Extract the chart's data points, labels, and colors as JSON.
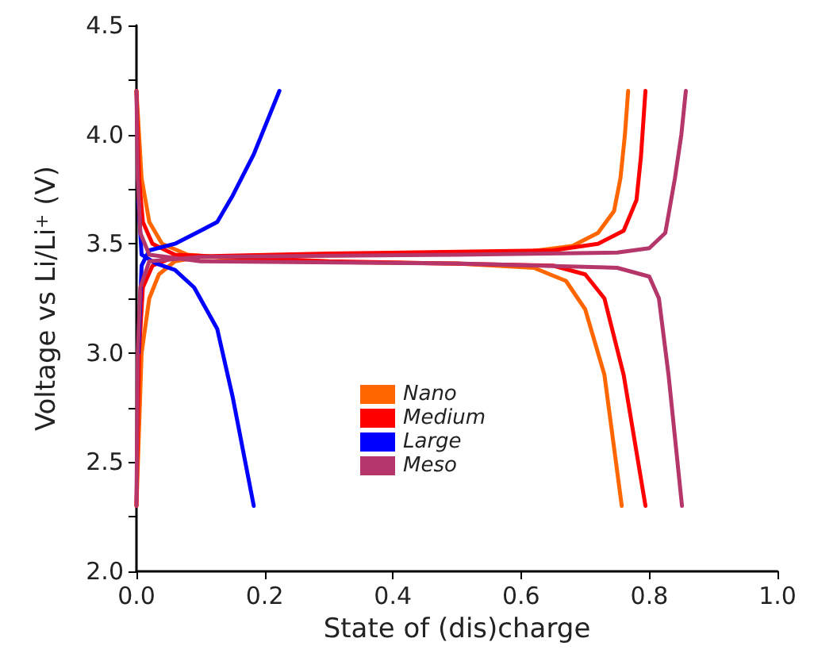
{
  "chart_data": {
    "type": "line",
    "xlabel": "State of (dis)charge",
    "ylabel": "Voltage vs Li/Li$^{+}$ (V)",
    "xlim": [
      0,
      1
    ],
    "ylim": [
      2,
      4.5
    ],
    "xticks": [
      {
        "value": 0,
        "label": "0.0"
      },
      0.2,
      0.4,
      0.6,
      0.8,
      {
        "value": 1,
        "label": "1.0"
      }
    ],
    "yticks": [
      {
        "value": 2,
        "label": "2.0"
      },
      {
        "value": 2.25,
        "label": null
      },
      2.5,
      {
        "value": 2.75,
        "label": null
      },
      {
        "value": 3,
        "label": "3.0"
      },
      {
        "value": 3.25,
        "label": null
      },
      3.5,
      {
        "value": 3.75,
        "label": null
      },
      {
        "value": 4,
        "label": "4.0"
      },
      {
        "value": 4.25,
        "label": null
      },
      4.5
    ],
    "grid": false,
    "legend": "bottom",
    "marker": "none",
    "line_style": "solid",
    "series": [
      {
        "name": "Nano",
        "color": "#ff6600",
        "x": [
          0,
          0.008,
          0.02,
          0.035,
          0.06,
          0.1,
          0.3,
          0.6,
          0.68,
          0.72,
          0.745,
          0.755,
          0.762,
          0.767,
          null,
          0,
          0.008,
          0.02,
          0.04,
          0.08,
          0.2,
          0.5,
          0.62,
          0.67,
          0.7,
          0.73,
          0.757
        ],
        "values": [
          2.3,
          3.0,
          3.25,
          3.36,
          3.42,
          3.44,
          3.45,
          3.46,
          3.49,
          3.55,
          3.65,
          3.8,
          4.0,
          4.2,
          null,
          4.2,
          3.8,
          3.6,
          3.5,
          3.45,
          3.42,
          3.41,
          3.39,
          3.33,
          3.2,
          2.9,
          2.3
        ]
      },
      {
        "name": "Medium",
        "color": "#ff0000",
        "x": [
          0,
          0.004,
          0.01,
          0.025,
          0.06,
          0.3,
          0.65,
          0.72,
          0.76,
          0.78,
          0.787,
          0.794,
          null,
          0,
          0.004,
          0.01,
          0.025,
          0.06,
          0.3,
          0.65,
          0.7,
          0.73,
          0.76,
          0.794
        ],
        "values": [
          2.3,
          3.0,
          3.3,
          3.4,
          3.44,
          3.455,
          3.47,
          3.5,
          3.56,
          3.7,
          3.9,
          4.2,
          null,
          4.2,
          3.8,
          3.6,
          3.5,
          3.45,
          3.42,
          3.4,
          3.36,
          3.25,
          2.9,
          2.3
        ]
      },
      {
        "name": "Large",
        "color": "#0000ff",
        "x": [
          0.003,
          0.008,
          0.02,
          0.06,
          0.1,
          0.126,
          0.15,
          0.183,
          0.223,
          null,
          0.003,
          0.008,
          0.03,
          0.06,
          0.09,
          0.126,
          0.15,
          0.183
        ],
        "values": [
          3.0,
          3.4,
          3.47,
          3.5,
          3.56,
          3.6,
          3.72,
          3.91,
          4.2,
          null,
          3.7,
          3.45,
          3.41,
          3.38,
          3.3,
          3.11,
          2.8,
          2.3
        ]
      },
      {
        "name": "Meso",
        "color": "#b5366a",
        "x": [
          0,
          0.002,
          0.006,
          0.02,
          0.1,
          0.5,
          0.75,
          0.8,
          0.825,
          0.84,
          0.85,
          0.857,
          null,
          0,
          0.002,
          0.006,
          0.02,
          0.1,
          0.5,
          0.75,
          0.8,
          0.815,
          0.83,
          0.851
        ],
        "values": [
          2.3,
          3.0,
          3.3,
          3.42,
          3.44,
          3.45,
          3.46,
          3.48,
          3.55,
          3.8,
          4.0,
          4.2,
          null,
          4.2,
          3.8,
          3.55,
          3.45,
          3.42,
          3.41,
          3.39,
          3.35,
          3.25,
          2.9,
          2.3
        ]
      }
    ]
  }
}
